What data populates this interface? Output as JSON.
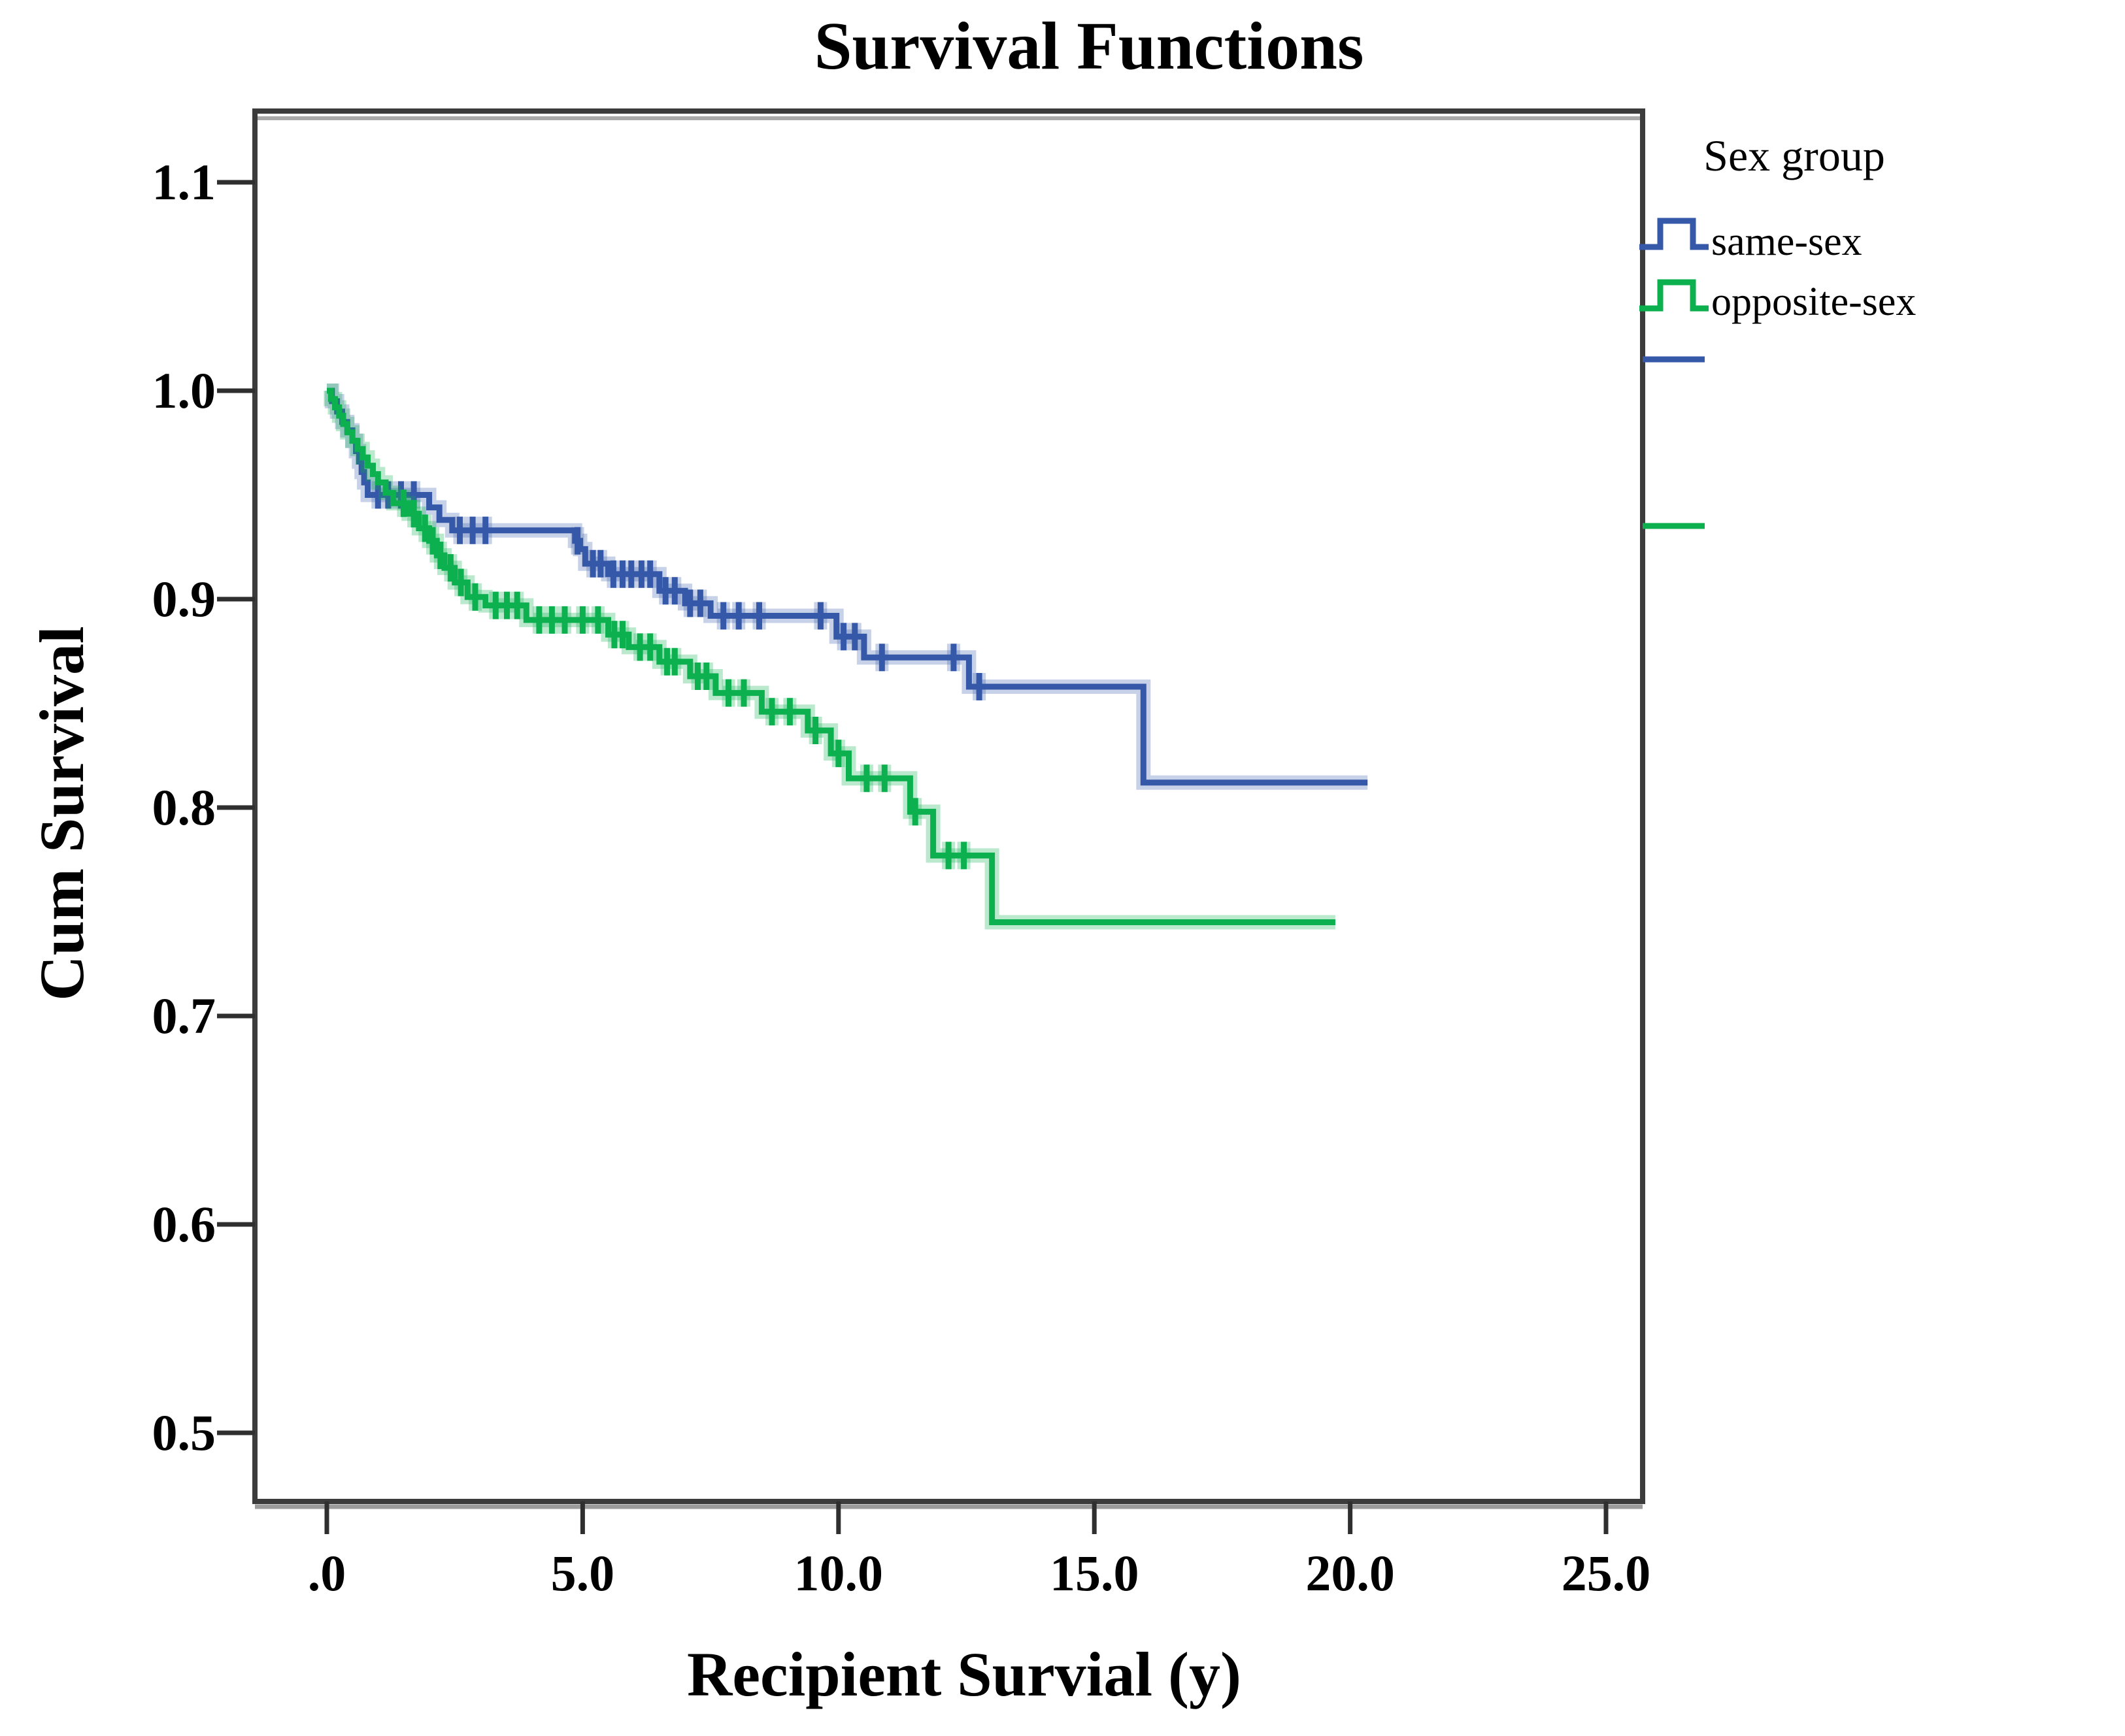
{
  "title": "Survival Functions",
  "axes": {
    "x": {
      "label": "Recipient Survial (y)",
      "tick_labels": [
        ".0",
        "5.0",
        "10.0",
        "15.0",
        "20.0",
        "25.0"
      ],
      "tick_values": [
        0,
        5,
        10,
        15,
        20,
        25
      ]
    },
    "y": {
      "label": "Cum Survival",
      "tick_labels": [
        "1.1",
        "1.0",
        "0.9",
        "0.8",
        "0.7",
        "0.6",
        "0.5"
      ],
      "tick_values": [
        1.1,
        1.0,
        0.9,
        0.8,
        0.7,
        0.6,
        0.5
      ]
    }
  },
  "legend": {
    "title": "Sex group",
    "entries": [
      {
        "label": "same-sex",
        "color": "#3558a8"
      },
      {
        "label": "opposite-sex",
        "color": "#0cb04f"
      }
    ]
  },
  "chart_data": {
    "type": "line",
    "subtype": "kaplan-meier-step",
    "title": "Survival Functions",
    "xlabel": "Recipient Survial (y)",
    "ylabel": "Cum Survival",
    "xlim": [
      -1.4,
      25.7
    ],
    "ylim": [
      0.466,
      1.135
    ],
    "grid": false,
    "legend_position": "upper-right-outside",
    "series": [
      {
        "name": "same-sex",
        "color": "#3558a8",
        "step": "post",
        "end_time": 20.34,
        "points": [
          [
            0,
            1.0
          ],
          [
            0.1,
            0.995
          ],
          [
            0.2,
            0.99
          ],
          [
            0.3,
            0.985
          ],
          [
            0.4,
            0.981
          ],
          [
            0.5,
            0.976
          ],
          [
            0.57,
            0.971
          ],
          [
            0.63,
            0.966
          ],
          [
            0.68,
            0.961
          ],
          [
            0.73,
            0.956
          ],
          [
            0.8,
            0.95
          ],
          [
            2.0,
            0.944
          ],
          [
            2.2,
            0.938
          ],
          [
            2.45,
            0.933
          ],
          [
            4.85,
            0.928
          ],
          [
            4.95,
            0.924
          ],
          [
            5.05,
            0.917
          ],
          [
            5.5,
            0.912
          ],
          [
            6.5,
            0.904
          ],
          [
            7.0,
            0.898
          ],
          [
            7.5,
            0.892
          ],
          [
            9.96,
            0.882
          ],
          [
            10.5,
            0.872
          ],
          [
            12.55,
            0.858
          ],
          [
            15.96,
            0.812
          ]
        ],
        "censor_ticks": [
          [
            1.0,
            0.95
          ],
          [
            1.2,
            0.95
          ],
          [
            1.45,
            0.95
          ],
          [
            1.7,
            0.95
          ],
          [
            2.6,
            0.933
          ],
          [
            2.85,
            0.933
          ],
          [
            3.1,
            0.933
          ],
          [
            4.9,
            0.928
          ],
          [
            5.2,
            0.917
          ],
          [
            5.35,
            0.917
          ],
          [
            5.6,
            0.912
          ],
          [
            5.78,
            0.912
          ],
          [
            5.95,
            0.912
          ],
          [
            6.15,
            0.912
          ],
          [
            6.32,
            0.912
          ],
          [
            6.62,
            0.904
          ],
          [
            6.8,
            0.904
          ],
          [
            7.1,
            0.898
          ],
          [
            7.3,
            0.898
          ],
          [
            7.75,
            0.892
          ],
          [
            8.05,
            0.892
          ],
          [
            8.45,
            0.892
          ],
          [
            9.65,
            0.892
          ],
          [
            10.1,
            0.882
          ],
          [
            10.32,
            0.882
          ],
          [
            10.85,
            0.872
          ],
          [
            12.25,
            0.872
          ],
          [
            12.75,
            0.858
          ]
        ]
      },
      {
        "name": "opposite-sex",
        "color": "#0cb04f",
        "step": "post",
        "end_time": 19.71,
        "points": [
          [
            0,
            1.0
          ],
          [
            0.08,
            0.996
          ],
          [
            0.16,
            0.992
          ],
          [
            0.24,
            0.988
          ],
          [
            0.32,
            0.984
          ],
          [
            0.4,
            0.98
          ],
          [
            0.5,
            0.976
          ],
          [
            0.6,
            0.972
          ],
          [
            0.7,
            0.968
          ],
          [
            0.8,
            0.964
          ],
          [
            0.9,
            0.96
          ],
          [
            1.0,
            0.956
          ],
          [
            1.15,
            0.951
          ],
          [
            1.3,
            0.946
          ],
          [
            1.6,
            0.941
          ],
          [
            1.8,
            0.934
          ],
          [
            2.0,
            0.928
          ],
          [
            2.15,
            0.921
          ],
          [
            2.3,
            0.915
          ],
          [
            2.5,
            0.908
          ],
          [
            2.75,
            0.901
          ],
          [
            3.1,
            0.897
          ],
          [
            3.9,
            0.89
          ],
          [
            5.5,
            0.883
          ],
          [
            5.9,
            0.877
          ],
          [
            6.5,
            0.87
          ],
          [
            7.1,
            0.863
          ],
          [
            7.6,
            0.855
          ],
          [
            8.5,
            0.846
          ],
          [
            9.4,
            0.837
          ],
          [
            9.85,
            0.826
          ],
          [
            10.2,
            0.814
          ],
          [
            11.4,
            0.798
          ],
          [
            11.85,
            0.777
          ],
          [
            13.0,
            0.745
          ]
        ],
        "censor_ticks": [
          [
            1.5,
            0.946
          ],
          [
            1.7,
            0.941
          ],
          [
            1.92,
            0.934
          ],
          [
            2.07,
            0.928
          ],
          [
            2.22,
            0.921
          ],
          [
            2.42,
            0.915
          ],
          [
            2.62,
            0.908
          ],
          [
            2.9,
            0.901
          ],
          [
            3.3,
            0.897
          ],
          [
            3.52,
            0.897
          ],
          [
            3.72,
            0.897
          ],
          [
            4.15,
            0.89
          ],
          [
            4.4,
            0.89
          ],
          [
            4.65,
            0.89
          ],
          [
            5.0,
            0.89
          ],
          [
            5.3,
            0.89
          ],
          [
            5.62,
            0.883
          ],
          [
            5.78,
            0.883
          ],
          [
            6.12,
            0.877
          ],
          [
            6.32,
            0.877
          ],
          [
            6.65,
            0.87
          ],
          [
            6.8,
            0.87
          ],
          [
            7.25,
            0.863
          ],
          [
            7.42,
            0.863
          ],
          [
            7.85,
            0.855
          ],
          [
            8.15,
            0.855
          ],
          [
            8.7,
            0.846
          ],
          [
            9.05,
            0.846
          ],
          [
            9.55,
            0.837
          ],
          [
            10.0,
            0.826
          ],
          [
            10.55,
            0.814
          ],
          [
            10.9,
            0.814
          ],
          [
            11.5,
            0.798
          ],
          [
            12.15,
            0.777
          ],
          [
            12.45,
            0.777
          ]
        ]
      }
    ]
  }
}
